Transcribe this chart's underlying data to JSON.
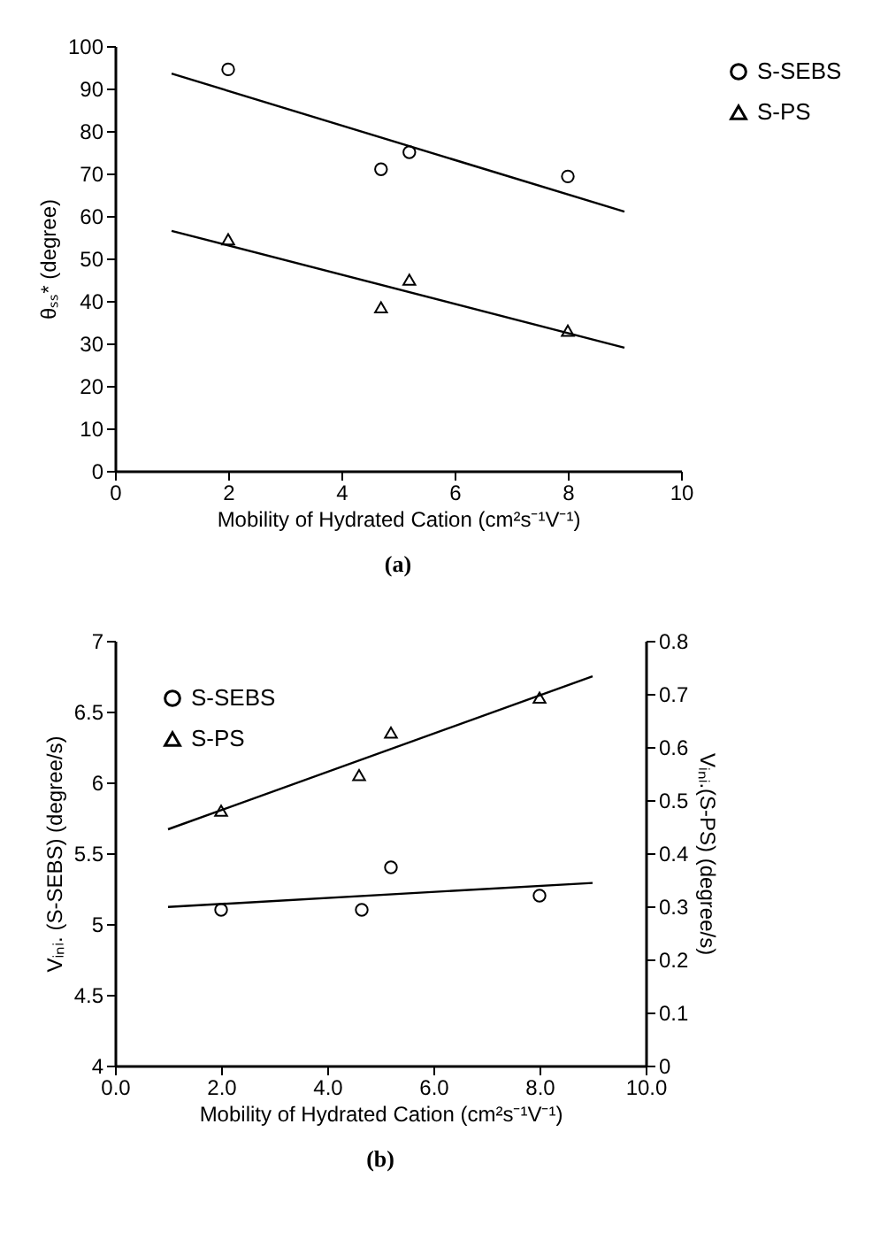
{
  "chart_data": [
    {
      "type": "scatter",
      "title": "(a)",
      "xlabel": "Mobility of Hydrated Cation (cm²s⁻¹V⁻¹)",
      "ylabel": "θₛₛ* (degree)",
      "xlim": [
        0,
        10
      ],
      "xticks": [
        0,
        2,
        4,
        6,
        8,
        10
      ],
      "ylim": [
        0,
        100
      ],
      "yticks": [
        0,
        10,
        20,
        30,
        40,
        50,
        60,
        70,
        80,
        90,
        100
      ],
      "grid": false,
      "legend": "right",
      "series": [
        {
          "name": "S-SEBS",
          "marker": "circle",
          "color": "#000000",
          "x": [
            2,
            4.7,
            5.2,
            8
          ],
          "values": [
            94.5,
            71,
            75,
            69.3
          ]
        },
        {
          "name": "S-PS",
          "marker": "triangle",
          "color": "#000000",
          "x": [
            2,
            4.7,
            5.2,
            8
          ],
          "values": [
            54.5,
            38.5,
            45,
            33
          ]
        },
        {
          "type": "line",
          "color": "#000000",
          "x": [
            1,
            9
          ],
          "values": [
            93.5,
            61
          ]
        },
        {
          "type": "line",
          "color": "#000000",
          "x": [
            1,
            9
          ],
          "values": [
            56.5,
            29
          ]
        }
      ]
    },
    {
      "type": "scatter",
      "title": "(b)",
      "xlabel": "Mobility of Hydrated Cation (cm²s⁻¹V⁻¹)",
      "ylabel": "Vᵢₙᵢ. (S-SEBS) (degree/s)",
      "y2label": "Vᵢₙᵢ.(S-PS) (degree/s)",
      "xlim": [
        0,
        10
      ],
      "xticks": [
        {
          "value": 0,
          "label": "0.0"
        },
        {
          "value": 2,
          "label": "2.0"
        },
        {
          "value": 4,
          "label": "4.0"
        },
        {
          "value": 6,
          "label": "6.0"
        },
        {
          "value": 8,
          "label": "8.0"
        },
        {
          "value": 10,
          "label": "10.0"
        }
      ],
      "ylim": [
        4,
        7
      ],
      "yticks": [
        4,
        4.5,
        5,
        5.5,
        6,
        6.5,
        7
      ],
      "y2lim": [
        0,
        0.8
      ],
      "y2ticks": [
        0,
        0.1,
        0.2,
        0.3,
        0.4,
        0.5,
        0.6,
        0.7,
        0.8
      ],
      "grid": false,
      "legend": "top left",
      "series": [
        {
          "name": "S-SEBS",
          "marker": "circle",
          "color": "#000000",
          "x": [
            2,
            4.65,
            5.2,
            8
          ],
          "values": [
            5.1,
            5.1,
            5.4,
            5.2
          ]
        },
        {
          "name": "S-PS",
          "marker": "triangle",
          "axis": "y2",
          "color": "#000000",
          "x": [
            2,
            4.6,
            5.2,
            8
          ],
          "values": [
            0.48,
            0.547,
            0.627,
            0.693
          ]
        },
        {
          "type": "line",
          "color": "#000000",
          "x": [
            1,
            9
          ],
          "values": [
            5.12,
            5.29
          ]
        },
        {
          "type": "line",
          "axis": "y2",
          "color": "#000000",
          "x": [
            1,
            9
          ],
          "values": [
            0.445,
            0.733
          ]
        }
      ]
    }
  ]
}
